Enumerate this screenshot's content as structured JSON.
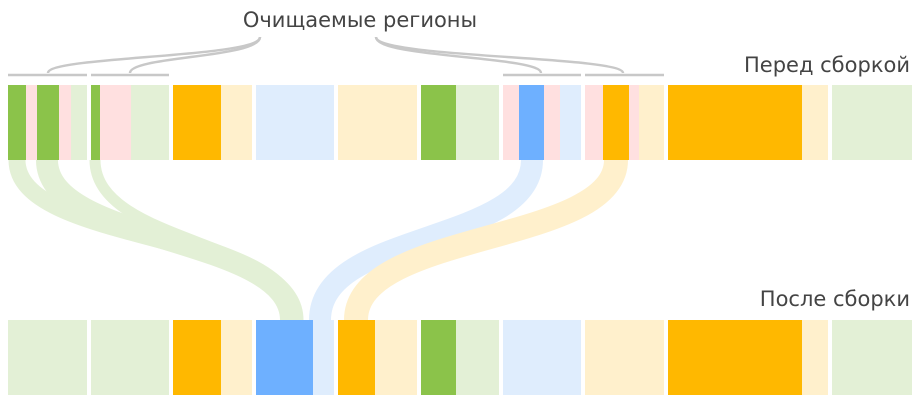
{
  "labels": {
    "title": "Очищаемые регионы",
    "before": "Перед сборкой",
    "after": "После сборки"
  },
  "colors": {
    "green": "#8bc34a",
    "green_light": "#e3f0d6",
    "pink": "#ffe0e0",
    "orange": "#ffb800",
    "orange_light": "#fff0cc",
    "blue": "#6eb0ff",
    "blue_light": "#dfedfd",
    "bracket": "#c8c8c8"
  },
  "regions_before": [
    {
      "kind": "mixed-green",
      "evacuated": true
    },
    {
      "kind": "mixed-green",
      "evacuated": true
    },
    {
      "kind": "orange",
      "evacuated": false
    },
    {
      "kind": "empty-blue",
      "evacuated": false
    },
    {
      "kind": "empty-orange",
      "evacuated": false
    },
    {
      "kind": "green",
      "evacuated": false
    },
    {
      "kind": "mixed-blue",
      "evacuated": true
    },
    {
      "kind": "mixed-orange",
      "evacuated": true
    },
    {
      "kind": "orange-large",
      "evacuated": false
    },
    {
      "kind": "empty-green",
      "evacuated": false
    }
  ],
  "regions_after": [
    {
      "kind": "empty-green"
    },
    {
      "kind": "empty-green"
    },
    {
      "kind": "orange"
    },
    {
      "kind": "compacted-blue"
    },
    {
      "kind": "compacted-orange"
    },
    {
      "kind": "green"
    },
    {
      "kind": "empty-blue"
    },
    {
      "kind": "empty-orange"
    },
    {
      "kind": "orange-large"
    },
    {
      "kind": "empty-green"
    }
  ]
}
